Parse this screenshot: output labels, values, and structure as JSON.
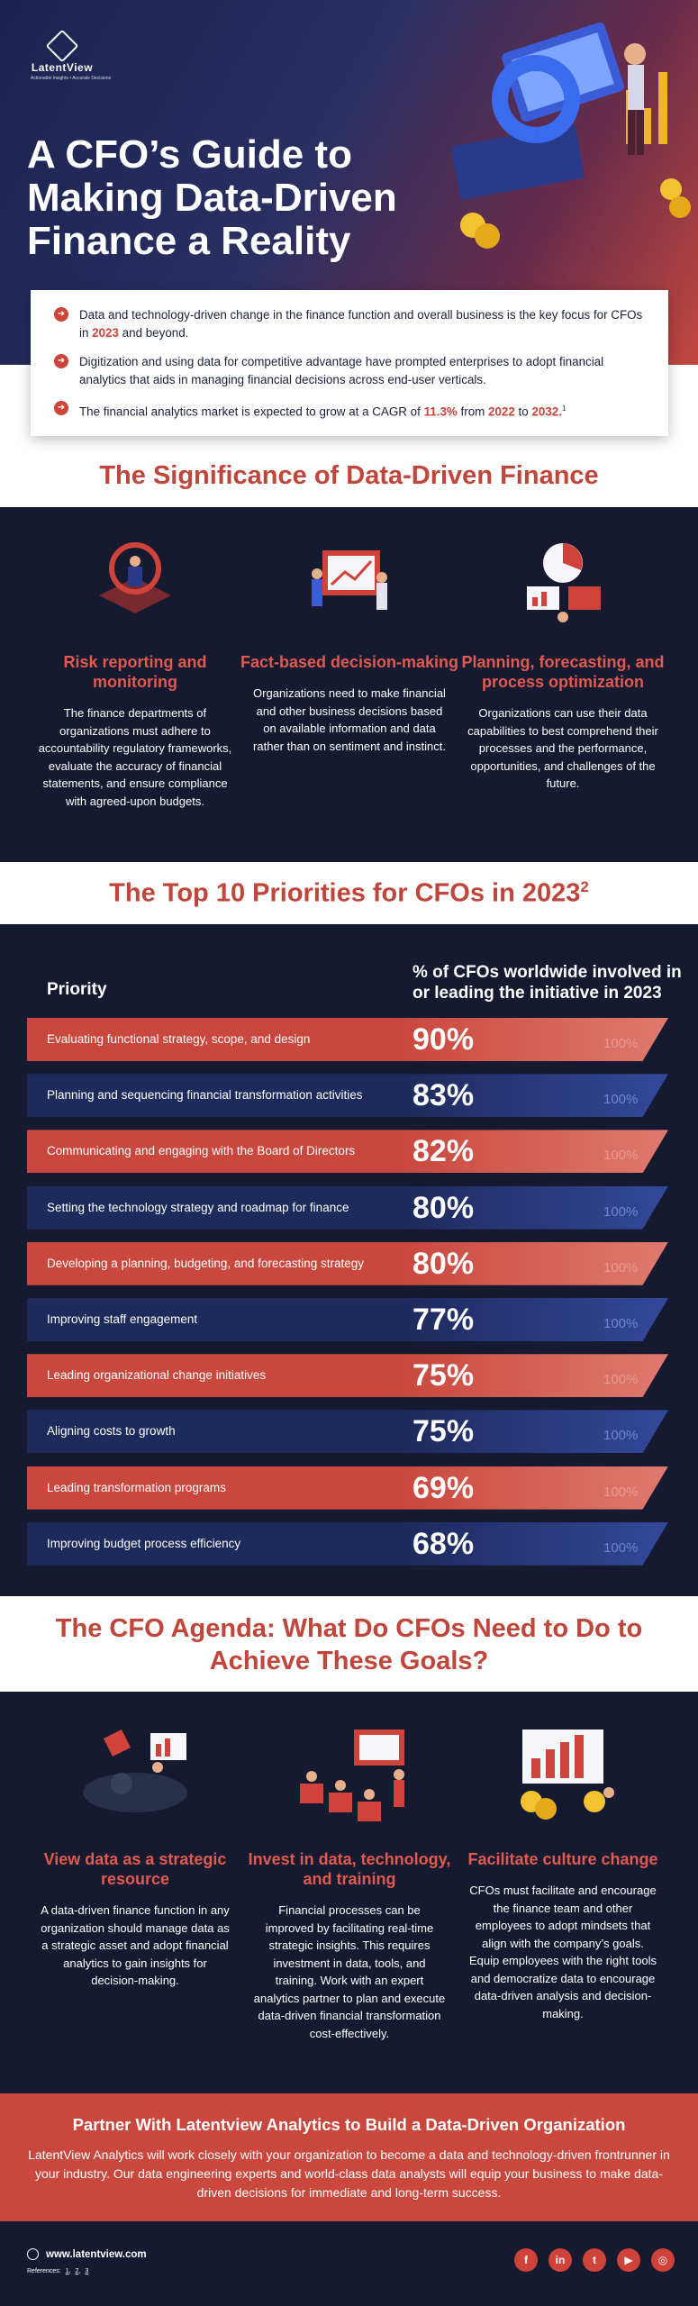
{
  "brand": {
    "name": "LatentView",
    "tagline": "Actionable Insights • Accurate Decisions"
  },
  "hero": {
    "title": "A CFO’s Guide to Making Data-Driven Finance a Reality"
  },
  "intro": [
    {
      "pre": "Data and technology-driven change in the finance function and overall business is the key focus for CFOs in ",
      "h1": "2023",
      "mid": " and beyond.",
      "h2": "",
      "post": ""
    },
    {
      "pre": "Digitization and using data for competitive advantage have prompted enterprises to adopt financial analytics that aids in managing financial decisions across end-user verticals.",
      "h1": "",
      "mid": "",
      "h2": "",
      "post": ""
    },
    {
      "pre": "The financial analytics market is expected to grow at a CAGR of ",
      "h1": "11.3%",
      "mid": " from ",
      "h2": "2022",
      "post": " to ",
      "h3": "2032.",
      "sup": "1"
    }
  ],
  "significance": {
    "title": "The Significance of Data-Driven Finance",
    "items": [
      {
        "head": "Risk reporting and monitoring",
        "body": "The finance departments of organizations must adhere to accountability regulatory frameworks, evaluate the accuracy of financial statements, and ensure compliance with agreed-upon budgets."
      },
      {
        "head": "Fact-based decision-making",
        "body": "Organizations need to make financial and other business decisions based on available information and data rather than on sentiment and instinct."
      },
      {
        "head": "Planning, forecasting, and process optimization",
        "body": "Organizations can use their data capabilities to best comprehend their processes and the performance, opportunities, and challenges of the future."
      }
    ]
  },
  "priorities": {
    "title": "The Top 10 Priorities for CFOs in 2023",
    "title_sup": "2",
    "col1": "Priority",
    "col2": "% of CFOs worldwide involved in or leading the initiative in 2023",
    "max_label": "100%",
    "rows": [
      {
        "label": "Evaluating functional strategy, scope, and design",
        "pct": "90%",
        "value": 90
      },
      {
        "label": "Planning and sequencing financial transformation activities",
        "pct": "83%",
        "value": 83
      },
      {
        "label": "Communicating and engaging with the Board of Directors",
        "pct": "82%",
        "value": 82
      },
      {
        "label": "Setting the technology strategy and roadmap for finance",
        "pct": "80%",
        "value": 80
      },
      {
        "label": "Developing a planning, budgeting, and forecasting strategy",
        "pct": "80%",
        "value": 80
      },
      {
        "label": "Improving staff engagement",
        "pct": "77%",
        "value": 77
      },
      {
        "label": "Leading organizational change initiatives",
        "pct": "75%",
        "value": 75
      },
      {
        "label": "Aligning costs to growth",
        "pct": "75%",
        "value": 75
      },
      {
        "label": "Leading transformation programs",
        "pct": "69%",
        "value": 69
      },
      {
        "label": "Improving budget process efficiency",
        "pct": "68%",
        "value": 68
      }
    ],
    "colors": {
      "red": "#c9473d",
      "navy": "#1d2a5c"
    }
  },
  "agenda": {
    "title": "The CFO Agenda: What Do CFOs Need to Do to Achieve These Goals?",
    "items": [
      {
        "head": "View data as a strategic resource",
        "body": "A data-driven finance function in any organization should manage data as a strategic asset and adopt financial analytics to gain insights for  decision-making."
      },
      {
        "head": "Invest in data, technology, and training",
        "body": "Financial processes can be improved by facilitating real-time strategic insights. This requires investment in data, tools, and training. Work with an expert analytics partner to plan and execute data-driven financial transformation cost-effectively."
      },
      {
        "head": "Facilitate culture change",
        "body": "CFOs must facilitate and encourage the finance team and other employees to adopt mindsets that align with the company’s goals. Equip employees with the right tools and democratize data to encourage data-driven analysis and decision-making."
      }
    ]
  },
  "partner": {
    "title": "Partner With Latentview Analytics to Build a Data-Driven Organization",
    "body": "LatentView Analytics will work closely with your organization to become a data and technology-driven frontrunner in your industry. Our data engineering experts and world-class data analysts will equip your business to make data-driven decisions for immediate and long-term success."
  },
  "footer": {
    "website": "www.latentview.com",
    "refs_label": "References:",
    "refs": [
      "1",
      "2",
      "3"
    ],
    "socials": [
      {
        "icon": "facebook-icon",
        "glyph": "f"
      },
      {
        "icon": "linkedin-icon",
        "glyph": "in"
      },
      {
        "icon": "twitter-icon",
        "glyph": "t"
      },
      {
        "icon": "youtube-icon",
        "glyph": "▶"
      },
      {
        "icon": "instagram-icon",
        "glyph": "◎"
      }
    ]
  }
}
